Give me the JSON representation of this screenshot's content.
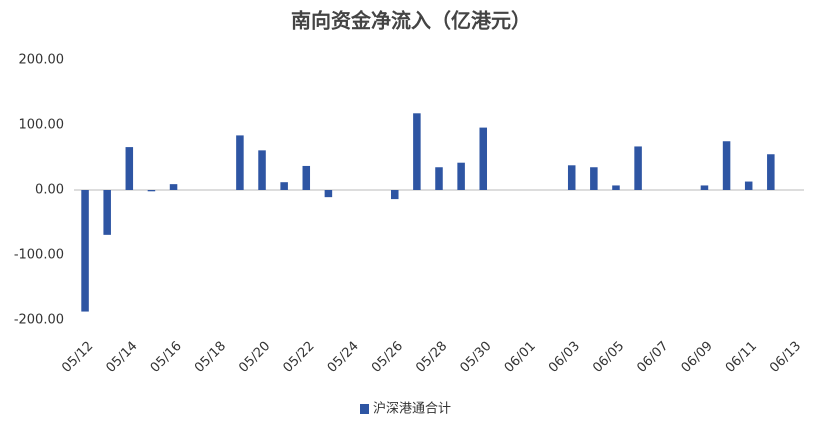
{
  "chart_data": {
    "type": "bar",
    "title": "南向资金净流入（亿港元）",
    "categories": [
      "05/12",
      null,
      "05/14",
      null,
      "05/16",
      null,
      "05/18",
      null,
      "05/20",
      null,
      "05/22",
      null,
      "05/24",
      null,
      "05/26",
      null,
      "05/28",
      null,
      "05/30",
      null,
      "06/01",
      null,
      "06/03",
      null,
      "06/05",
      null,
      "06/07",
      null,
      "06/09",
      null,
      "06/11",
      null,
      "06/13"
    ],
    "series": [
      {
        "name": "沪深港通合计",
        "color": "#2e55a3",
        "values": [
          -187,
          -69,
          66,
          -2,
          9,
          null,
          null,
          84,
          61,
          12,
          37,
          -11,
          null,
          null,
          -14,
          118,
          35,
          42,
          96,
          null,
          null,
          null,
          38,
          35,
          7,
          67,
          null,
          null,
          7,
          75,
          13,
          55,
          null
        ]
      }
    ],
    "ylim": [
      -200,
      200
    ],
    "yticks": [
      {
        "value": -200,
        "label": "-200.00"
      },
      {
        "value": -100,
        "label": "-100.00"
      },
      {
        "value": 0,
        "label": "0.00"
      },
      {
        "value": 100,
        "label": "100.00"
      },
      {
        "value": 200,
        "label": "200.00"
      }
    ],
    "grid": false,
    "legend": "bottom"
  }
}
